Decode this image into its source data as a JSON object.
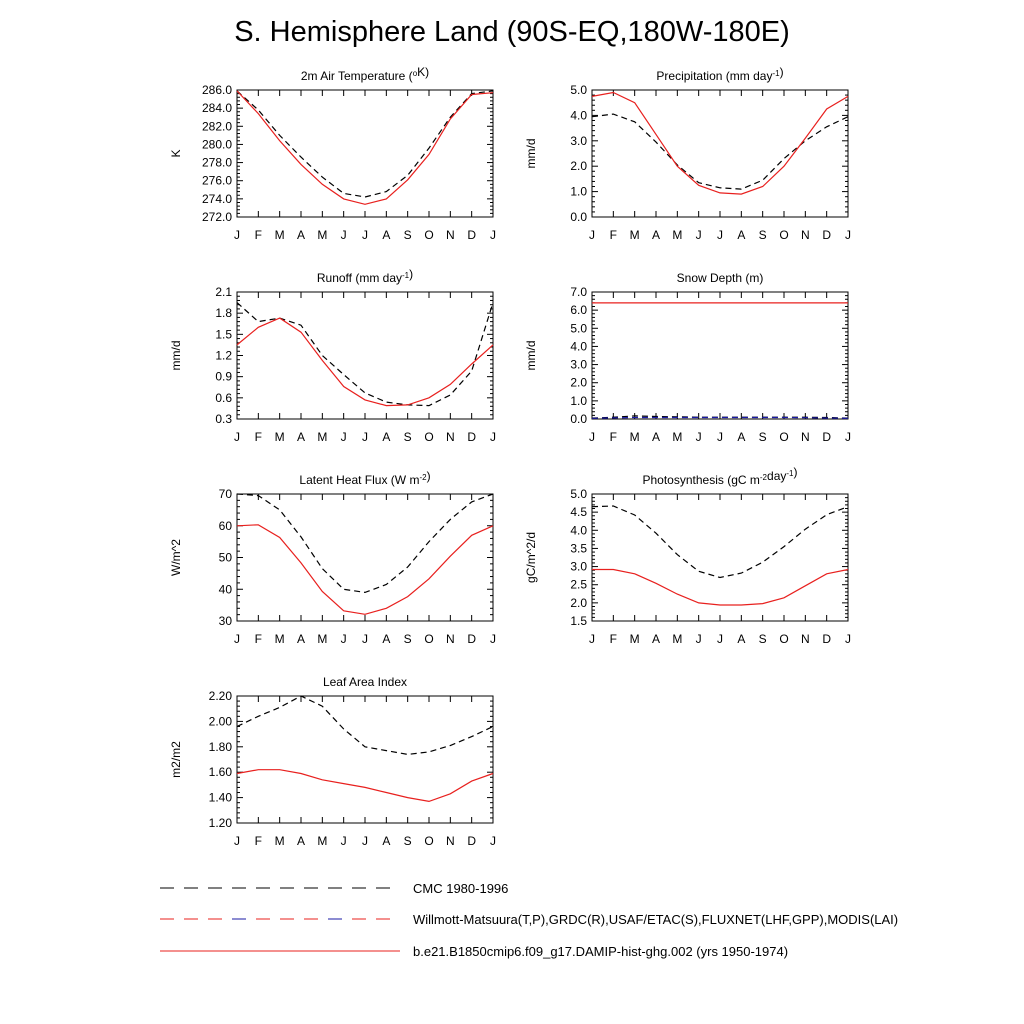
{
  "title": "S. Hemisphere Land (90S-EQ,180W-180E)",
  "months": [
    "J",
    "F",
    "M",
    "A",
    "M",
    "J",
    "J",
    "A",
    "S",
    "O",
    "N",
    "D",
    "J"
  ],
  "colors": {
    "model": "#e8201e",
    "obs": "#000000",
    "obs_alt": "#1a1aa6",
    "axis": "#000000"
  },
  "legend": [
    {
      "label": "CMC 1980-1996",
      "style": "dashed-black"
    },
    {
      "label": "Willmott-Matsuura(T,P),GRDC(R),USAF/ETAC(S),FLUXNET(LHF,GPP),MODIS(LAI)",
      "style": "dashed-red-blue"
    },
    {
      "label": "b.e21.B1850cmip6.f09_g17.DAMIP-hist-ghg.002 (yrs 1950-1974)",
      "style": "solid-red"
    }
  ],
  "chart_data": [
    {
      "type": "line",
      "title": "2m Air Temperature (",
      "title_sup": "o",
      "title_post": "K)",
      "ylabel": "K",
      "ylim": [
        272,
        286
      ],
      "yticks": [
        "272.0",
        "274.0",
        "276.0",
        "278.0",
        "280.0",
        "282.0",
        "284.0",
        "286.0"
      ],
      "x": [
        "J",
        "F",
        "M",
        "A",
        "M",
        "J",
        "J",
        "A",
        "S",
        "O",
        "N",
        "D",
        "J"
      ],
      "series": [
        {
          "role": "obs",
          "values": [
            285.9,
            283.8,
            281.0,
            278.6,
            276.4,
            274.6,
            274.2,
            274.8,
            276.6,
            279.6,
            283.0,
            285.6,
            285.9
          ]
        },
        {
          "role": "model",
          "values": [
            285.9,
            283.4,
            280.4,
            277.8,
            275.6,
            274.0,
            273.4,
            274.0,
            276.1,
            278.9,
            282.8,
            285.5,
            285.7
          ]
        }
      ]
    },
    {
      "type": "line",
      "title": "Precipitation (mm day",
      "title_sup": "-1",
      "title_post": ")",
      "ylabel": "mm/d",
      "ylim": [
        0,
        5
      ],
      "yticks": [
        "0.0",
        "1.0",
        "2.0",
        "3.0",
        "4.0",
        "5.0"
      ],
      "x": [
        "J",
        "F",
        "M",
        "A",
        "M",
        "J",
        "J",
        "A",
        "S",
        "O",
        "N",
        "D",
        "J"
      ],
      "series": [
        {
          "role": "obs",
          "values": [
            3.95,
            4.05,
            3.75,
            2.95,
            2.05,
            1.35,
            1.15,
            1.1,
            1.45,
            2.3,
            3.0,
            3.55,
            3.95
          ]
        },
        {
          "role": "model",
          "values": [
            4.75,
            4.9,
            4.5,
            3.25,
            2.0,
            1.25,
            0.95,
            0.9,
            1.2,
            2.0,
            3.1,
            4.25,
            4.75
          ]
        }
      ]
    },
    {
      "type": "line",
      "title": "Runoff (mm day",
      "title_sup": "-1",
      "title_post": ")",
      "ylabel": "mm/d",
      "ylim": [
        0.3,
        2.1
      ],
      "yticks": [
        "0.3",
        "0.6",
        "0.9",
        "1.2",
        "1.5",
        "1.8",
        "2.1"
      ],
      "x": [
        "J",
        "F",
        "M",
        "A",
        "M",
        "J",
        "J",
        "A",
        "S",
        "O",
        "N",
        "D",
        "J"
      ],
      "series": [
        {
          "role": "obs",
          "values": [
            1.95,
            1.68,
            1.73,
            1.63,
            1.2,
            0.93,
            0.67,
            0.54,
            0.5,
            0.49,
            0.64,
            0.98,
            1.95
          ]
        },
        {
          "role": "model",
          "values": [
            1.35,
            1.6,
            1.73,
            1.53,
            1.13,
            0.76,
            0.57,
            0.49,
            0.5,
            0.6,
            0.79,
            1.08,
            1.35
          ]
        }
      ]
    },
    {
      "type": "line",
      "title": "Snow Depth (m)",
      "title_sup": "",
      "title_post": "",
      "ylabel": "mm/d",
      "ylim": [
        0,
        7
      ],
      "yticks": [
        "0.0",
        "1.0",
        "2.0",
        "3.0",
        "4.0",
        "5.0",
        "6.0",
        "7.0"
      ],
      "x": [
        "J",
        "F",
        "M",
        "A",
        "M",
        "J",
        "J",
        "A",
        "S",
        "O",
        "N",
        "D",
        "J"
      ],
      "series": [
        {
          "role": "obs",
          "values": [
            0.05,
            0.1,
            0.17,
            0.14,
            0.12,
            0.1,
            0.1,
            0.1,
            0.1,
            0.1,
            0.1,
            0.08,
            0.05
          ]
        },
        {
          "role": "obs_alt",
          "values": [
            0.04,
            0.06,
            0.08,
            0.08,
            0.08,
            0.08,
            0.08,
            0.08,
            0.08,
            0.08,
            0.07,
            0.05,
            0.04
          ]
        },
        {
          "role": "model",
          "values": [
            6.4,
            6.4,
            6.4,
            6.4,
            6.4,
            6.4,
            6.4,
            6.4,
            6.4,
            6.4,
            6.4,
            6.4,
            6.4
          ]
        }
      ]
    },
    {
      "type": "line",
      "title": "Latent Heat Flux (W m",
      "title_sup": "-2",
      "title_post": ")",
      "ylabel": "W/m^2",
      "ylim": [
        30,
        70
      ],
      "yticks": [
        "30",
        "40",
        "50",
        "60",
        "70"
      ],
      "x": [
        "J",
        "F",
        "M",
        "A",
        "M",
        "J",
        "J",
        "A",
        "S",
        "O",
        "N",
        "D",
        "J"
      ],
      "series": [
        {
          "role": "obs",
          "values": [
            70,
            69.5,
            65,
            56.5,
            46.5,
            40,
            39,
            41.5,
            47,
            55,
            62,
            67.5,
            70
          ]
        },
        {
          "role": "model",
          "values": [
            60,
            60.3,
            56.3,
            48.3,
            39.3,
            33.2,
            32.1,
            34,
            37.7,
            43.3,
            50.4,
            57,
            60
          ]
        }
      ]
    },
    {
      "type": "line",
      "title": "Photosynthesis (gC m",
      "title_sup": "-2",
      "title_mid": "day",
      "title_sup2": "-1",
      "title_post": ")",
      "ylabel": "gC/m^2/d",
      "ylim": [
        1.5,
        5.0
      ],
      "yticks": [
        "1.5",
        "2.0",
        "2.5",
        "3.0",
        "3.5",
        "4.0",
        "4.5",
        "5.0"
      ],
      "x": [
        "J",
        "F",
        "M",
        "A",
        "M",
        "J",
        "J",
        "A",
        "S",
        "O",
        "N",
        "D",
        "J"
      ],
      "series": [
        {
          "role": "obs",
          "values": [
            4.65,
            4.67,
            4.42,
            3.92,
            3.33,
            2.87,
            2.7,
            2.82,
            3.12,
            3.55,
            4.03,
            4.43,
            4.65
          ]
        },
        {
          "role": "model",
          "values": [
            2.92,
            2.92,
            2.8,
            2.54,
            2.24,
            2.0,
            1.94,
            1.94,
            1.98,
            2.14,
            2.47,
            2.8,
            2.92
          ]
        }
      ]
    },
    {
      "type": "line",
      "title": "Leaf Area Index",
      "title_sup": "",
      "title_post": "",
      "ylabel": "m2/m2",
      "ylim": [
        1.2,
        2.2
      ],
      "yticks": [
        "1.20",
        "1.40",
        "1.60",
        "1.80",
        "2.00",
        "2.20"
      ],
      "x": [
        "J",
        "F",
        "M",
        "A",
        "M",
        "J",
        "J",
        "A",
        "S",
        "O",
        "N",
        "D",
        "J"
      ],
      "series": [
        {
          "role": "obs",
          "values": [
            1.96,
            2.04,
            2.11,
            2.2,
            2.12,
            1.94,
            1.8,
            1.77,
            1.74,
            1.76,
            1.81,
            1.88,
            1.96
          ]
        },
        {
          "role": "model",
          "values": [
            1.59,
            1.62,
            1.62,
            1.59,
            1.54,
            1.51,
            1.48,
            1.44,
            1.4,
            1.37,
            1.43,
            1.53,
            1.59
          ]
        }
      ]
    }
  ]
}
